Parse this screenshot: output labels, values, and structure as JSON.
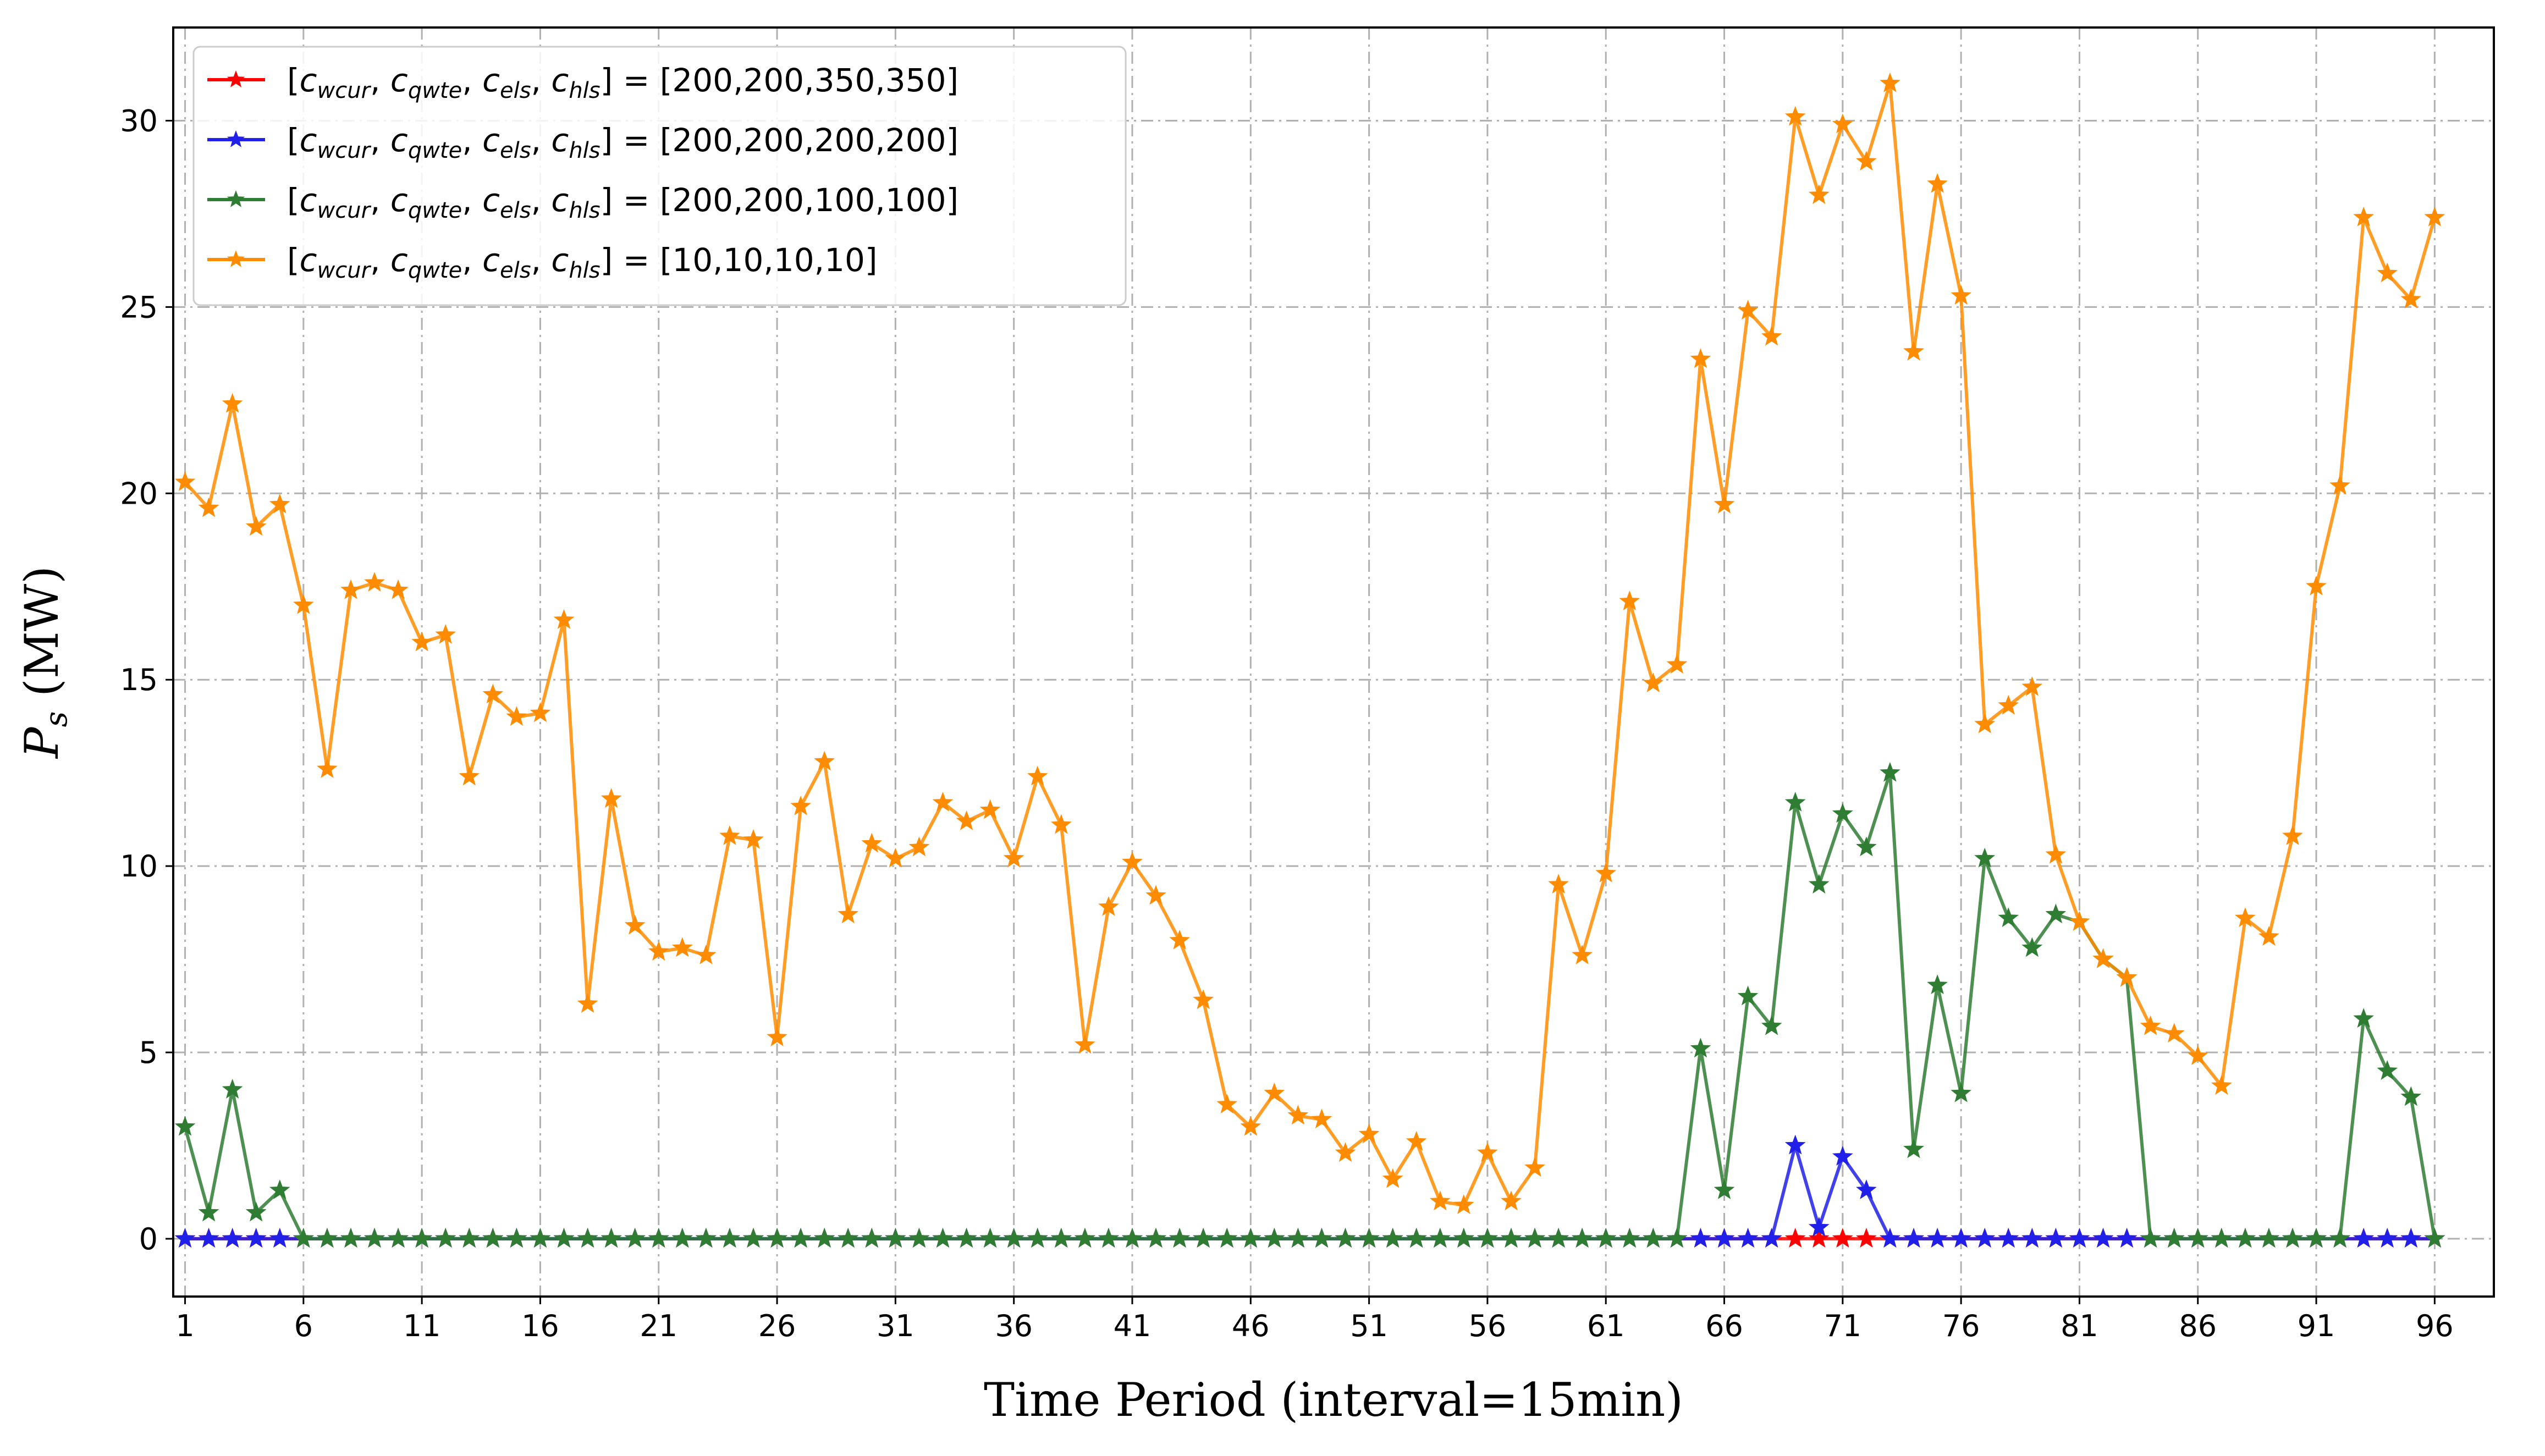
{
  "chart_data": {
    "type": "line",
    "xlabel": "Time Period (interval=15min)",
    "ylabel": "P_s (MW)",
    "xticks": [
      1,
      6,
      11,
      16,
      21,
      26,
      31,
      36,
      41,
      46,
      51,
      56,
      61,
      66,
      71,
      76,
      81,
      86,
      91,
      96
    ],
    "yticks": [
      0,
      5,
      10,
      15,
      20,
      25,
      30
    ],
    "xlim": [
      -0.5,
      97.5
    ],
    "ylim": [
      -1.55,
      32.5
    ],
    "grid": true,
    "legend_position": "top-left",
    "legend_prefix": "[c_wcur, c_qwte, c_els, c_hls] =",
    "series": [
      {
        "name": "[c_wcur, c_qwte, c_els, c_hls] = [200,200,350,350]",
        "legend_value": "[200,200,350,350]",
        "color": "#ff0000",
        "x": [
          0,
          1,
          2,
          3,
          4,
          5,
          6,
          7,
          8,
          9,
          10,
          11,
          12,
          13,
          14,
          15,
          16,
          17,
          18,
          19,
          20,
          21,
          22,
          23,
          24,
          25,
          26,
          27,
          28,
          29,
          30,
          31,
          32,
          33,
          34,
          35,
          36,
          37,
          38,
          39,
          40,
          41,
          42,
          43,
          44,
          45,
          46,
          47,
          48,
          49,
          50,
          51,
          52,
          53,
          54,
          55,
          56,
          57,
          58,
          59,
          60,
          61,
          62,
          63,
          64,
          65,
          66,
          67,
          68,
          69,
          70,
          71,
          72,
          73,
          74,
          75,
          76,
          77,
          78,
          79,
          80,
          81,
          82,
          83,
          84,
          85,
          86,
          87,
          88,
          89,
          90,
          91,
          92,
          93,
          94,
          95
        ],
        "values": [
          0,
          0,
          0,
          0,
          0,
          0,
          0,
          0,
          0,
          0,
          0,
          0,
          0,
          0,
          0,
          0,
          0,
          0,
          0,
          0,
          0,
          0,
          0,
          0,
          0,
          0,
          0,
          0,
          0,
          0,
          0,
          0,
          0,
          0,
          0,
          0,
          0,
          0,
          0,
          0,
          0,
          0,
          0,
          0,
          0,
          0,
          0,
          0,
          0,
          0,
          0,
          0,
          0,
          0,
          0,
          0,
          0,
          0,
          0,
          0,
          0,
          0,
          0,
          0,
          0,
          0,
          0,
          0,
          0,
          0,
          0,
          0,
          0,
          0,
          0,
          0,
          0,
          0,
          0,
          0,
          0,
          0,
          0,
          0,
          0,
          0,
          0,
          0,
          0,
          0,
          0,
          0,
          0,
          0,
          0,
          0
        ]
      },
      {
        "name": "[c_wcur, c_qwte, c_els, c_hls] = [200,200,200,200]",
        "legend_value": "[200,200,200,200]",
        "color": "#2020e8",
        "x": [
          0,
          1,
          2,
          3,
          4,
          5,
          6,
          7,
          8,
          9,
          10,
          11,
          12,
          13,
          14,
          15,
          16,
          17,
          18,
          19,
          20,
          21,
          22,
          23,
          24,
          25,
          26,
          27,
          28,
          29,
          30,
          31,
          32,
          33,
          34,
          35,
          36,
          37,
          38,
          39,
          40,
          41,
          42,
          43,
          44,
          45,
          46,
          47,
          48,
          49,
          50,
          51,
          52,
          53,
          54,
          55,
          56,
          57,
          58,
          59,
          60,
          61,
          62,
          63,
          64,
          65,
          66,
          67,
          68,
          69,
          70,
          71,
          72,
          73,
          74,
          75,
          76,
          77,
          78,
          79,
          80,
          81,
          82,
          83,
          84,
          85,
          86,
          87,
          88,
          89,
          90,
          91,
          92,
          93,
          94,
          95
        ],
        "values": [
          0,
          0,
          0,
          0,
          0,
          0,
          0,
          0,
          0,
          0,
          0,
          0,
          0,
          0,
          0,
          0,
          0,
          0,
          0,
          0,
          0,
          0,
          0,
          0,
          0,
          0,
          0,
          0,
          0,
          0,
          0,
          0,
          0,
          0,
          0,
          0,
          0,
          0,
          0,
          0,
          0,
          0,
          0,
          0,
          0,
          0,
          0,
          0,
          0,
          0,
          0,
          0,
          0,
          0,
          0,
          0,
          0,
          0,
          0,
          0,
          0,
          0,
          0,
          0,
          0,
          0,
          0,
          0,
          2.5,
          0.3,
          2.2,
          1.3,
          0,
          0,
          0,
          0,
          0,
          0,
          0,
          0,
          0,
          0,
          0,
          0,
          0,
          0,
          0,
          0,
          0,
          0,
          0,
          0,
          0,
          0,
          0,
          0
        ]
      },
      {
        "name": "[c_wcur, c_qwte, c_els, c_hls] = [200,200,100,100]",
        "legend_value": "[200,200,100,100]",
        "color": "#2e7d32",
        "x": [
          0,
          1,
          2,
          3,
          4,
          5,
          6,
          7,
          8,
          9,
          10,
          11,
          12,
          13,
          14,
          15,
          16,
          17,
          18,
          19,
          20,
          21,
          22,
          23,
          24,
          25,
          26,
          27,
          28,
          29,
          30,
          31,
          32,
          33,
          34,
          35,
          36,
          37,
          38,
          39,
          40,
          41,
          42,
          43,
          44,
          45,
          46,
          47,
          48,
          49,
          50,
          51,
          52,
          53,
          54,
          55,
          56,
          57,
          58,
          59,
          60,
          61,
          62,
          63,
          64,
          65,
          66,
          67,
          68,
          69,
          70,
          71,
          72,
          73,
          74,
          75,
          76,
          77,
          78,
          79,
          80,
          81,
          82,
          83,
          84,
          85,
          86,
          87,
          88,
          89,
          90,
          91,
          92,
          93,
          94,
          95
        ],
        "values": [
          3.0,
          0.7,
          4.0,
          0.7,
          1.3,
          0,
          0,
          0,
          0,
          0,
          0,
          0,
          0,
          0,
          0,
          0,
          0,
          0,
          0,
          0,
          0,
          0,
          0,
          0,
          0,
          0,
          0,
          0,
          0,
          0,
          0,
          0,
          0,
          0,
          0,
          0,
          0,
          0,
          0,
          0,
          0,
          0,
          0,
          0,
          0,
          0,
          0,
          0,
          0,
          0,
          0,
          0,
          0,
          0,
          0,
          0,
          0,
          0,
          0,
          0,
          0,
          0,
          0,
          0,
          5.1,
          1.3,
          6.5,
          5.7,
          11.7,
          9.5,
          11.4,
          10.5,
          12.5,
          2.4,
          6.8,
          3.9,
          10.2,
          8.6,
          7.8,
          8.7,
          8.5,
          7.5,
          7.0,
          0,
          0,
          0,
          0,
          0,
          0,
          0,
          0,
          0,
          5.9,
          4.5,
          3.8,
          0
        ]
      },
      {
        "name": "[c_wcur, c_qwte, c_els, c_hls] = [10,10,10,10]",
        "legend_value": "[10,10,10,10]",
        "color": "#ff8c00",
        "x": [
          0,
          1,
          2,
          3,
          4,
          5,
          6,
          7,
          8,
          9,
          10,
          11,
          12,
          13,
          14,
          15,
          16,
          17,
          18,
          19,
          20,
          21,
          22,
          23,
          24,
          25,
          26,
          27,
          28,
          29,
          30,
          31,
          32,
          33,
          34,
          35,
          36,
          37,
          38,
          39,
          40,
          41,
          42,
          43,
          44,
          45,
          46,
          47,
          48,
          49,
          50,
          51,
          52,
          53,
          54,
          55,
          56,
          57,
          58,
          59,
          60,
          61,
          62,
          63,
          64,
          65,
          66,
          67,
          68,
          69,
          70,
          71,
          72,
          73,
          74,
          75,
          76,
          77,
          78,
          79,
          80,
          81,
          82,
          83,
          84,
          85,
          86,
          87,
          88,
          89,
          90,
          91,
          92,
          93,
          94,
          95
        ],
        "values": [
          20.3,
          19.6,
          22.4,
          19.1,
          19.7,
          17.0,
          12.6,
          17.4,
          17.6,
          17.4,
          16.0,
          16.2,
          12.4,
          14.6,
          14.0,
          14.1,
          16.6,
          6.3,
          11.8,
          8.4,
          7.7,
          7.8,
          7.6,
          10.8,
          10.7,
          5.4,
          11.6,
          12.8,
          8.7,
          10.6,
          10.2,
          10.5,
          11.7,
          11.2,
          11.5,
          10.2,
          12.4,
          11.1,
          5.2,
          8.9,
          10.1,
          9.2,
          8.0,
          6.4,
          3.6,
          3.0,
          3.9,
          3.3,
          3.2,
          2.3,
          2.8,
          1.6,
          2.6,
          1.0,
          0.9,
          2.3,
          1.0,
          1.9,
          9.5,
          7.6,
          9.8,
          17.1,
          14.9,
          15.4,
          23.6,
          19.7,
          24.9,
          24.2,
          30.1,
          28.0,
          29.9,
          28.9,
          31.0,
          23.8,
          28.3,
          25.3,
          13.8,
          14.3,
          14.8,
          10.3,
          8.5,
          7.5,
          7.0,
          5.7,
          5.5,
          4.9,
          4.1,
          8.6,
          8.1,
          10.8,
          17.5,
          20.2,
          27.4,
          25.9,
          25.2,
          27.4
        ]
      }
    ]
  }
}
